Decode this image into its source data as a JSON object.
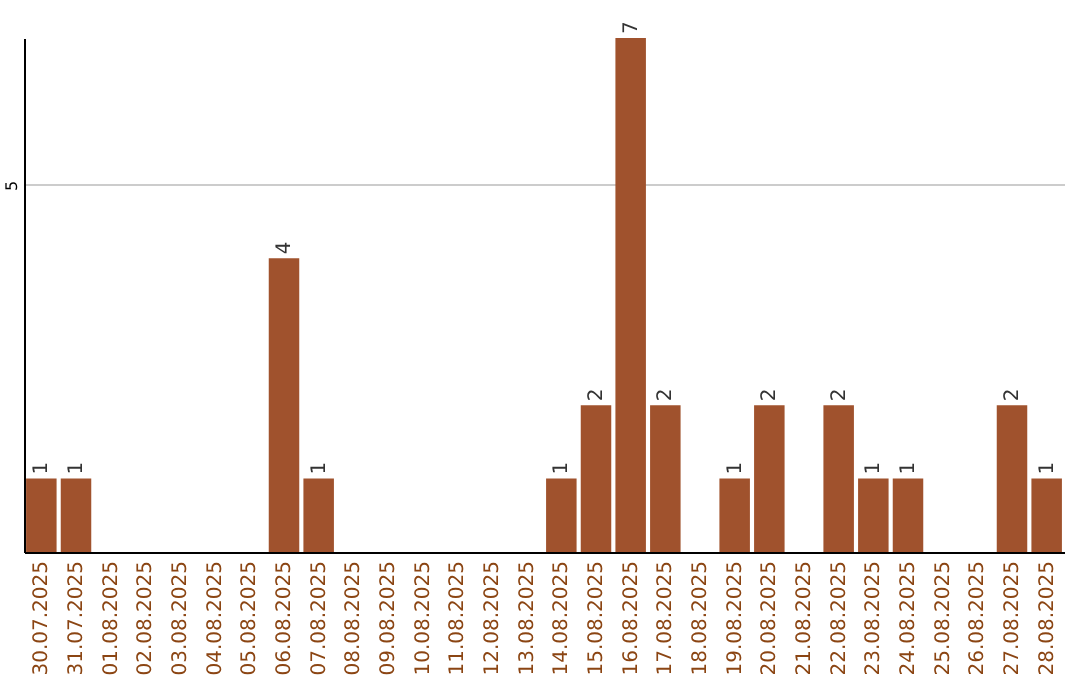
{
  "chart_data": {
    "type": "bar",
    "categories": [
      "30.07.2025",
      "31.07.2025",
      "01.08.2025",
      "02.08.2025",
      "03.08.2025",
      "04.08.2025",
      "05.08.2025",
      "06.08.2025",
      "07.08.2025",
      "08.08.2025",
      "09.08.2025",
      "10.08.2025",
      "11.08.2025",
      "12.08.2025",
      "13.08.2025",
      "14.08.2025",
      "15.08.2025",
      "16.08.2025",
      "17.08.2025",
      "18.08.2025",
      "19.08.2025",
      "20.08.2025",
      "21.08.2025",
      "22.08.2025",
      "23.08.2025",
      "24.08.2025",
      "25.08.2025",
      "26.08.2025",
      "27.08.2025",
      "28.08.2025"
    ],
    "values": [
      1,
      1,
      0,
      0,
      0,
      0,
      0,
      4,
      1,
      0,
      0,
      0,
      0,
      0,
      0,
      1,
      2,
      7,
      2,
      0,
      1,
      2,
      0,
      2,
      1,
      1,
      0,
      0,
      2,
      1
    ],
    "value_labels": [
      "1",
      "1",
      null,
      null,
      null,
      null,
      null,
      "4",
      "1",
      null,
      null,
      null,
      null,
      null,
      null,
      "1",
      "2",
      "7",
      "2",
      null,
      "1",
      "2",
      null,
      "2",
      "1",
      "1",
      null,
      null,
      "2",
      "1"
    ],
    "color": "#a0522d",
    "ylim": [
      0,
      7
    ],
    "yticks": [
      5
    ],
    "grid": "y"
  }
}
